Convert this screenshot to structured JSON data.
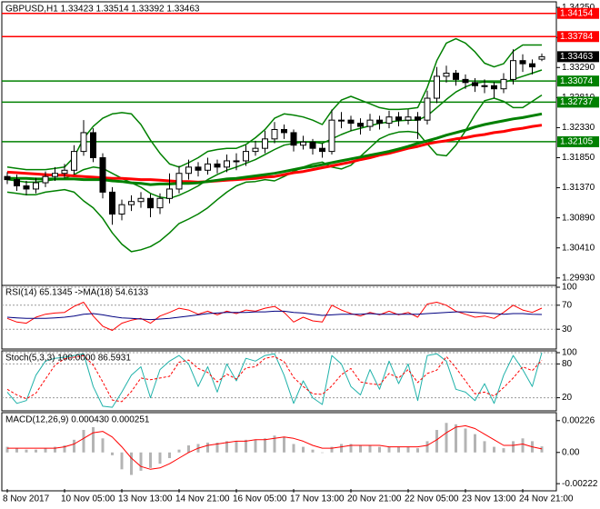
{
  "chart_data": [
    {
      "type": "candlestick",
      "title": "GBPUSD,H1  1.33423 1.33514 1.33392 1.33463",
      "categories": [
        "8 Nov 2017",
        null,
        null,
        null,
        null,
        null,
        "10 Nov 05:00",
        null,
        null,
        null,
        null,
        null,
        "13 Nov 13:00",
        null,
        null,
        null,
        null,
        null,
        "14 Nov 21:00",
        null,
        null,
        null,
        null,
        null,
        "16 Nov 05:00",
        null,
        null,
        null,
        null,
        null,
        "17 Nov 13:00",
        null,
        null,
        null,
        null,
        null,
        "20 Nov 21:00",
        null,
        null,
        null,
        null,
        null,
        "22 Nov 05:00",
        null,
        null,
        null,
        null,
        null,
        "23 Nov 13:00",
        null,
        null,
        null,
        null,
        null,
        "24 Nov 21:00",
        null,
        null
      ],
      "open": [
        1.3155,
        1.315,
        1.314,
        1.3135,
        1.3145,
        1.3155,
        1.316,
        1.3165,
        1.3195,
        1.3225,
        1.3185,
        1.313,
        1.3095,
        1.311,
        1.3115,
        1.312,
        1.3105,
        1.312,
        1.3135,
        1.316,
        1.317,
        1.3165,
        1.3175,
        1.317,
        1.318,
        1.318,
        1.3195,
        1.32,
        1.3215,
        1.323,
        1.3225,
        1.3205,
        1.321,
        1.32,
        1.3195,
        1.3245,
        1.3245,
        1.324,
        1.3235,
        1.3245,
        1.324,
        1.325,
        1.3245,
        1.325,
        1.3245,
        1.328,
        1.3315,
        1.332,
        1.331,
        1.3305,
        1.33,
        1.33,
        1.3295,
        1.331,
        1.334,
        1.3335,
        1.33423
      ],
      "high": [
        1.3162,
        1.3158,
        1.3148,
        1.3153,
        1.3163,
        1.317,
        1.3175,
        1.3205,
        1.3245,
        1.3232,
        1.3192,
        1.3138,
        1.3118,
        1.3125,
        1.313,
        1.3127,
        1.3128,
        1.316,
        1.3172,
        1.3182,
        1.3178,
        1.3185,
        1.3182,
        1.319,
        1.3192,
        1.3205,
        1.3212,
        1.3228,
        1.3242,
        1.3238,
        1.323,
        1.322,
        1.3215,
        1.3208,
        1.3262,
        1.3258,
        1.3252,
        1.3248,
        1.3255,
        1.3252,
        1.326,
        1.3258,
        1.3262,
        1.3258,
        1.3292,
        1.333,
        1.3332,
        1.3325,
        1.3318,
        1.3312,
        1.331,
        1.3306,
        1.332,
        1.3358,
        1.335,
        1.3342,
        1.33514
      ],
      "low": [
        1.3143,
        1.3132,
        1.3125,
        1.3128,
        1.3138,
        1.3148,
        1.3152,
        1.3158,
        1.3188,
        1.3178,
        1.312,
        1.3078,
        1.3085,
        1.31,
        1.3105,
        1.309,
        1.3095,
        1.3112,
        1.3128,
        1.315,
        1.3155,
        1.3158,
        1.316,
        1.3162,
        1.3165,
        1.3172,
        1.3188,
        1.3192,
        1.3208,
        1.3215,
        1.3195,
        1.3198,
        1.319,
        1.3185,
        1.319,
        1.3232,
        1.3228,
        1.3222,
        1.3228,
        1.323,
        1.3232,
        1.3235,
        1.3238,
        1.3215,
        1.3238,
        1.3272,
        1.3305,
        1.33,
        1.3295,
        1.329,
        1.3288,
        1.328,
        1.3288,
        1.3302,
        1.3322,
        1.3318,
        1.33392
      ],
      "close": [
        1.315,
        1.314,
        1.3135,
        1.3145,
        1.3155,
        1.316,
        1.3165,
        1.3195,
        1.3225,
        1.3185,
        1.313,
        1.3095,
        1.311,
        1.3115,
        1.312,
        1.3105,
        1.312,
        1.3135,
        1.316,
        1.317,
        1.3165,
        1.3175,
        1.317,
        1.318,
        1.318,
        1.3195,
        1.32,
        1.3215,
        1.323,
        1.3225,
        1.3205,
        1.321,
        1.32,
        1.3195,
        1.3245,
        1.3245,
        1.324,
        1.3235,
        1.3245,
        1.324,
        1.325,
        1.3245,
        1.325,
        1.3245,
        1.328,
        1.3315,
        1.332,
        1.331,
        1.3305,
        1.33,
        1.33,
        1.3295,
        1.331,
        1.334,
        1.3335,
        1.333,
        1.33463
      ],
      "candle_color": "#000000",
      "bollinger": {
        "color": "#008000",
        "upper": [
          1.317,
          1.3168,
          1.3166,
          1.3166,
          1.3166,
          1.3168,
          1.317,
          1.3186,
          1.3216,
          1.3235,
          1.3248,
          1.3255,
          1.3257,
          1.3255,
          1.3238,
          1.3213,
          1.3192,
          1.3175,
          1.317,
          1.3177,
          1.3185,
          1.3195,
          1.3198,
          1.32,
          1.32,
          1.3206,
          1.3217,
          1.323,
          1.3248,
          1.3255,
          1.3253,
          1.325,
          1.3245,
          1.3238,
          1.326,
          1.3277,
          1.3283,
          1.3277,
          1.3271,
          1.3265,
          1.3262,
          1.3262,
          1.3263,
          1.3265,
          1.3297,
          1.334,
          1.3368,
          1.3375,
          1.3368,
          1.3354,
          1.3336,
          1.333,
          1.3335,
          1.3355,
          1.3365,
          1.3365,
          1.3365
        ],
        "middle": [
          1.315,
          1.3148,
          1.3146,
          1.3146,
          1.3148,
          1.315,
          1.3152,
          1.3158,
          1.3166,
          1.317,
          1.3168,
          1.316,
          1.3152,
          1.3145,
          1.3138,
          1.3128,
          1.3122,
          1.312,
          1.3125,
          1.3132,
          1.314,
          1.315,
          1.3158,
          1.3165,
          1.317,
          1.3176,
          1.3182,
          1.319,
          1.3198,
          1.3205,
          1.3208,
          1.321,
          1.321,
          1.3208,
          1.3215,
          1.3222,
          1.3228,
          1.3232,
          1.3236,
          1.324,
          1.3242,
          1.3244,
          1.3245,
          1.3245,
          1.3252,
          1.3265,
          1.3278,
          1.329,
          1.3298,
          1.3304,
          1.3306,
          1.3305,
          1.3305,
          1.331,
          1.3315,
          1.332,
          1.3325
        ],
        "lower": [
          1.313,
          1.3128,
          1.3126,
          1.3126,
          1.313,
          1.3132,
          1.3134,
          1.313,
          1.3116,
          1.3105,
          1.3088,
          1.3065,
          1.3047,
          1.3035,
          1.3038,
          1.3043,
          1.3052,
          1.3065,
          1.308,
          1.3087,
          1.3095,
          1.3105,
          1.3118,
          1.313,
          1.314,
          1.3146,
          1.3147,
          1.315,
          1.3148,
          1.3155,
          1.3163,
          1.317,
          1.3175,
          1.3178,
          1.317,
          1.3167,
          1.3173,
          1.3187,
          1.3201,
          1.3215,
          1.3222,
          1.3226,
          1.3227,
          1.3225,
          1.3207,
          1.319,
          1.3188,
          1.3205,
          1.3228,
          1.3254,
          1.3276,
          1.328,
          1.3275,
          1.3265,
          1.3265,
          1.3275,
          1.3285
        ]
      },
      "moving_averages": [
        {
          "color": "#ff0000",
          "values": [
            1.3162,
            1.3161,
            1.316,
            1.3159,
            1.3158,
            1.3157,
            1.3157,
            1.3156,
            1.3155,
            1.3154,
            1.3153,
            1.3152,
            1.3152,
            1.3151,
            1.315,
            1.315,
            1.3149,
            1.3148,
            1.3147,
            1.3147,
            1.3146,
            1.3147,
            1.3148,
            1.3149,
            1.315,
            1.3151,
            1.3152,
            1.3154,
            1.3155,
            1.3158,
            1.3161,
            1.3163,
            1.3166,
            1.3169,
            1.3172,
            1.3175,
            1.3178,
            1.3182,
            1.3185,
            1.3189,
            1.3192,
            1.3196,
            1.32,
            1.3203,
            1.3207,
            1.321,
            1.3212,
            1.3215,
            1.3217,
            1.322,
            1.3222,
            1.3225,
            1.3227,
            1.323,
            1.3232,
            1.3235,
            1.3237
          ]
        },
        {
          "color": "#008000",
          "values": [
            1.3152,
            1.3152,
            1.3152,
            1.3151,
            1.3151,
            1.3151,
            1.3151,
            1.3151,
            1.315,
            1.315,
            1.315,
            1.3148,
            1.3147,
            1.3145,
            1.3144,
            1.3142,
            1.3143,
            1.3143,
            1.3144,
            1.3144,
            1.3145,
            1.3147,
            1.3149,
            1.3151,
            1.3152,
            1.3154,
            1.3156,
            1.3158,
            1.316,
            1.3163,
            1.3166,
            1.3169,
            1.3171,
            1.3174,
            1.3177,
            1.318,
            1.3183,
            1.3186,
            1.3189,
            1.3192,
            1.3195,
            1.3199,
            1.3203,
            1.3208,
            1.3212,
            1.3216,
            1.3221,
            1.3225,
            1.3229,
            1.3234,
            1.3238,
            1.3241,
            1.3244,
            1.3247,
            1.3249,
            1.3252,
            1.3255
          ]
        }
      ],
      "levels": [
        {
          "value": 1.34154,
          "color": "#ff0000"
        },
        {
          "value": 1.33784,
          "color": "#ff0000"
        },
        {
          "value": 1.33074,
          "color": "#008000"
        },
        {
          "value": 1.32737,
          "color": "#008000"
        },
        {
          "value": 1.32105,
          "color": "#008000"
        }
      ],
      "ylim": [
        1.2984,
        1.3431
      ],
      "yticks": [
        {
          "value": 1.3425,
          "label": "1.34250"
        },
        {
          "value": 1.3377,
          "label": "1.33770"
        },
        {
          "value": 1.3329,
          "label": "1.33290"
        },
        {
          "value": 1.3281,
          "label": "1.32810"
        },
        {
          "value": 1.3233,
          "label": "1.32330"
        },
        {
          "value": 1.3185,
          "label": "1.31850"
        },
        {
          "value": 1.3137,
          "label": "1.31370"
        },
        {
          "value": 1.3089,
          "label": "1.30890"
        },
        {
          "value": 1.3041,
          "label": "1.30410"
        },
        {
          "value": 1.2993,
          "label": "1.29930"
        }
      ]
    },
    {
      "type": "line",
      "title": "RSI(14) 65.1345  ->MA(18) 54.6133",
      "ylim": [
        0,
        100
      ],
      "yticks": [
        30,
        70,
        100
      ],
      "grid": true,
      "series": [
        {
          "color": "#ff0000",
          "values": [
            48,
            42,
            40,
            50,
            55,
            57,
            58,
            68,
            75,
            52,
            35,
            28,
            40,
            45,
            48,
            40,
            52,
            58,
            65,
            62,
            55,
            60,
            54,
            60,
            56,
            62,
            60,
            65,
            68,
            58,
            42,
            50,
            44,
            42,
            70,
            62,
            56,
            52,
            58,
            54,
            60,
            54,
            58,
            50,
            72,
            75,
            70,
            60,
            55,
            50,
            52,
            48,
            58,
            70,
            62,
            58,
            65.1345
          ]
        },
        {
          "color": "#000080",
          "values": [
            50,
            49,
            48,
            48,
            48,
            49,
            50,
            52,
            55,
            56,
            54,
            51,
            49,
            48,
            47,
            46,
            47,
            48,
            50,
            52,
            54,
            56,
            57,
            58,
            58,
            58,
            59,
            59,
            60,
            60,
            58,
            57,
            55,
            53,
            54,
            55,
            55,
            55,
            56,
            55,
            55,
            55,
            55,
            55,
            56,
            57,
            58,
            59,
            59,
            58,
            57,
            56,
            55,
            56,
            56,
            55,
            54.6133
          ]
        }
      ]
    },
    {
      "type": "line",
      "title": "Stoch(5,3,3) 100.0000 86.5931",
      "ylim": [
        0,
        100
      ],
      "yticks": [
        20,
        80,
        100
      ],
      "grid": true,
      "series": [
        {
          "color": "#20b2aa",
          "values": [
            30,
            10,
            15,
            60,
            85,
            90,
            92,
            95,
            98,
            40,
            5,
            3,
            30,
            60,
            75,
            20,
            70,
            85,
            95,
            80,
            40,
            75,
            30,
            80,
            50,
            90,
            85,
            95,
            98,
            60,
            10,
            50,
            20,
            8,
            95,
            80,
            40,
            25,
            70,
            35,
            85,
            45,
            80,
            15,
            95,
            98,
            85,
            35,
            30,
            15,
            45,
            10,
            60,
            95,
            70,
            40,
            100
          ]
        },
        {
          "color": "#ff0000",
          "linestyle": "dashed",
          "values": [
            35,
            25,
            18,
            28,
            53,
            78,
            89,
            92,
            95,
            78,
            48,
            16,
            13,
            31,
            55,
            52,
            55,
            58,
            83,
            87,
            72,
            65,
            48,
            62,
            53,
            73,
            75,
            90,
            93,
            84,
            56,
            40,
            27,
            26,
            41,
            61,
            72,
            48,
            45,
            43,
            63,
            55,
            70,
            47,
            63,
            69,
            93,
            73,
            50,
            27,
            30,
            23,
            38,
            55,
            75,
            68,
            86.5931
          ]
        }
      ]
    },
    {
      "type": "macd",
      "title": "MACD(12,26,9) 0.000430 0.000251",
      "ylim": [
        -0.0026,
        0.0027
      ],
      "yticks": [
        0.00226,
        {
          "value": 0,
          "label": "0.00"
        },
        -0.00222
      ],
      "histogram": {
        "color": "#b4b4b4",
        "values": [
          0.0004,
          0.0003,
          0.0002,
          0.0002,
          0.0003,
          0.0004,
          0.0005,
          0.0009,
          0.0016,
          0.0018,
          0.001,
          -0.0002,
          -0.0012,
          -0.0016,
          -0.0013,
          -0.0011,
          -0.0008,
          -0.0004,
          0.0002,
          0.0005,
          0.0006,
          0.0007,
          0.0007,
          0.0008,
          0.0008,
          0.0009,
          0.0009,
          0.001,
          0.0012,
          0.0011,
          0.0006,
          0.0004,
          0.0002,
          0,
          0.0004,
          0.0006,
          0.0006,
          0.0005,
          0.0005,
          0.0004,
          0.0004,
          0.0004,
          0.0004,
          0.0003,
          0.0008,
          0.0016,
          0.0021,
          0.002,
          0.0017,
          0.0013,
          0.0008,
          0.0004,
          0.0003,
          0.0008,
          0.001,
          0.0008,
          0.00043
        ]
      },
      "signal": {
        "color": "#ff0000",
        "values": [
          0.0003,
          0.0003,
          0.0003,
          0.0003,
          0.0003,
          0.0003,
          0.0004,
          0.0006,
          0.001,
          0.0014,
          0.0015,
          0.0011,
          0.0004,
          -0.0004,
          -0.001,
          -0.0012,
          -0.0011,
          -0.0008,
          -0.0004,
          0,
          0.0003,
          0.0005,
          0.0006,
          0.0007,
          0.0008,
          0.0008,
          0.0009,
          0.0009,
          0.001,
          0.0011,
          0.001,
          0.0008,
          0.0005,
          0.0003,
          0.0003,
          0.0004,
          0.0005,
          0.0005,
          0.0005,
          0.0005,
          0.0004,
          0.0004,
          0.0004,
          0.0004,
          0.0005,
          0.0009,
          0.0014,
          0.0018,
          0.0019,
          0.0017,
          0.0013,
          0.0009,
          0.0005,
          0.0005,
          0.0006,
          0.0004,
          0.000251
        ]
      }
    }
  ]
}
